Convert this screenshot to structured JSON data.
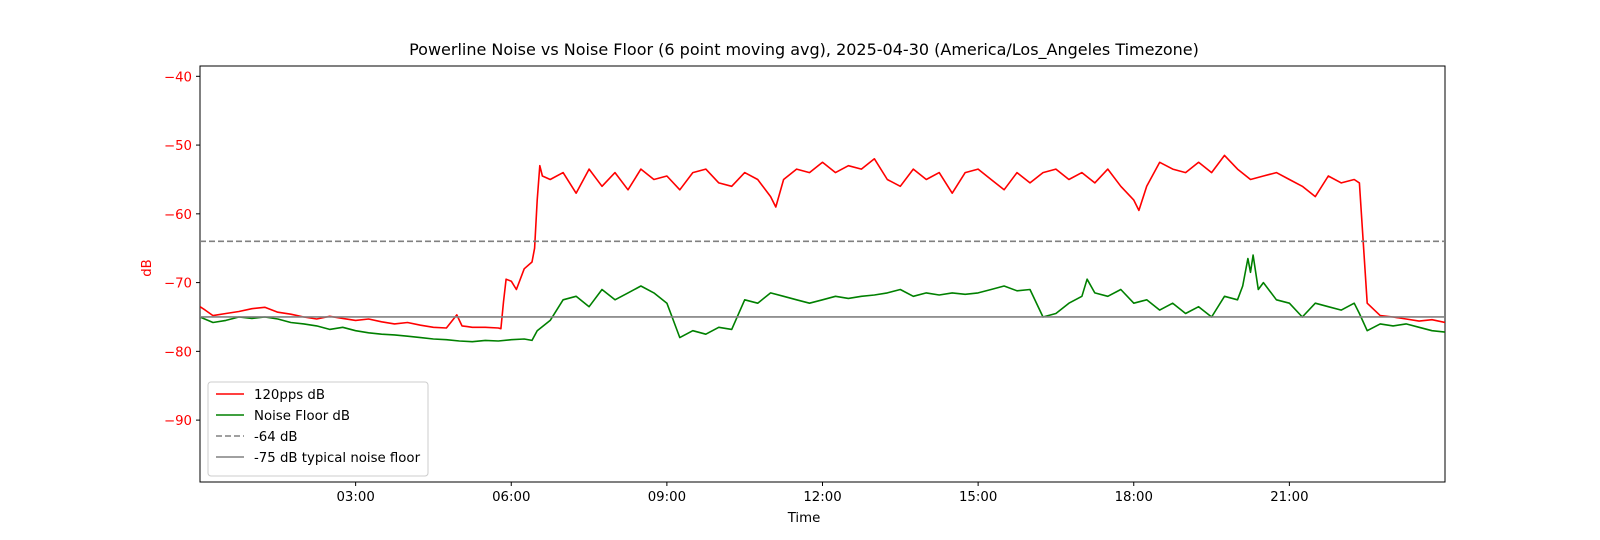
{
  "chart_data": {
    "type": "line",
    "title": "Powerline Noise vs Noise Floor (6 point moving avg), 2025-04-30 (America/Los_Angeles Timezone)",
    "xlabel": "Time",
    "ylabel": "dB",
    "x_unit": "hours",
    "xlim": [
      0,
      24
    ],
    "ylim": [
      -99,
      -38.5
    ],
    "x_ticks": [
      {
        "value": 3,
        "label": "03:00"
      },
      {
        "value": 6,
        "label": "06:00"
      },
      {
        "value": 9,
        "label": "09:00"
      },
      {
        "value": 12,
        "label": "12:00"
      },
      {
        "value": 15,
        "label": "15:00"
      },
      {
        "value": 18,
        "label": "18:00"
      },
      {
        "value": 21,
        "label": "21:00"
      }
    ],
    "y_ticks": [
      {
        "value": -40,
        "label": "−40"
      },
      {
        "value": -50,
        "label": "−50"
      },
      {
        "value": -60,
        "label": "−60"
      },
      {
        "value": -70,
        "label": "−70"
      },
      {
        "value": -80,
        "label": "−80"
      },
      {
        "value": -90,
        "label": "−90"
      }
    ],
    "ylabel_color": "#ff0000",
    "yticks_color": "#ff0000",
    "grid": false,
    "legend_position": "lower-left",
    "series": [
      {
        "name": "120pps dB",
        "color": "#ff0000",
        "style": "solid",
        "x": [
          0.0,
          0.1,
          0.25,
          0.5,
          0.75,
          1.0,
          1.25,
          1.5,
          1.75,
          2.0,
          2.25,
          2.5,
          2.75,
          3.0,
          3.25,
          3.5,
          3.75,
          4.0,
          4.25,
          4.5,
          4.75,
          4.95,
          5.05,
          5.15,
          5.25,
          5.5,
          5.75,
          5.8,
          5.85,
          5.9,
          6.0,
          6.1,
          6.25,
          6.4,
          6.45,
          6.5,
          6.55,
          6.6,
          6.75,
          7.0,
          7.25,
          7.5,
          7.75,
          8.0,
          8.25,
          8.5,
          8.75,
          9.0,
          9.25,
          9.5,
          9.75,
          10.0,
          10.25,
          10.5,
          10.75,
          11.0,
          11.1,
          11.25,
          11.5,
          11.75,
          12.0,
          12.25,
          12.5,
          12.75,
          13.0,
          13.25,
          13.5,
          13.75,
          14.0,
          14.25,
          14.5,
          14.75,
          15.0,
          15.25,
          15.5,
          15.75,
          16.0,
          16.25,
          16.5,
          16.75,
          17.0,
          17.25,
          17.5,
          17.75,
          18.0,
          18.1,
          18.25,
          18.5,
          18.75,
          19.0,
          19.25,
          19.5,
          19.75,
          20.0,
          20.25,
          20.5,
          20.75,
          21.0,
          21.25,
          21.5,
          21.75,
          22.0,
          22.25,
          22.35,
          22.5,
          22.75,
          23.0,
          23.25,
          23.5,
          23.75,
          24.0
        ],
        "y": [
          -73.5,
          -74.0,
          -74.8,
          -74.5,
          -74.2,
          -73.8,
          -73.6,
          -74.3,
          -74.6,
          -75.0,
          -75.3,
          -74.9,
          -75.2,
          -75.5,
          -75.3,
          -75.7,
          -76.0,
          -75.8,
          -76.2,
          -76.5,
          -76.6,
          -74.7,
          -76.3,
          -76.4,
          -76.5,
          -76.5,
          -76.6,
          -76.7,
          -72.8,
          -69.5,
          -69.8,
          -71.0,
          -68.0,
          -67.0,
          -65.0,
          -58.0,
          -53.0,
          -54.5,
          -55.0,
          -54.0,
          -57.0,
          -53.5,
          -56.0,
          -54.0,
          -56.5,
          -53.5,
          -55.0,
          -54.5,
          -56.5,
          -54.0,
          -53.5,
          -55.5,
          -56.0,
          -54.0,
          -55.0,
          -57.5,
          -59.0,
          -55.0,
          -53.5,
          -54.0,
          -52.5,
          -54.0,
          -53.0,
          -53.5,
          -52.0,
          -55.0,
          -56.0,
          -53.5,
          -55.0,
          -54.0,
          -57.0,
          -54.0,
          -53.5,
          -55.0,
          -56.5,
          -54.0,
          -55.5,
          -54.0,
          -53.5,
          -55.0,
          -54.0,
          -55.5,
          -53.5,
          -56.0,
          -58.0,
          -59.5,
          -56.0,
          -52.5,
          -53.5,
          -54.0,
          -52.5,
          -54.0,
          -51.5,
          -53.5,
          -55.0,
          -54.5,
          -54.0,
          -55.0,
          -56.0,
          -57.5,
          -54.5,
          -55.5,
          -55.0,
          -55.5,
          -73.0,
          -74.8,
          -75.0,
          -75.3,
          -75.6,
          -75.4,
          -75.8
        ]
      },
      {
        "name": "Noise Floor dB",
        "color": "#008000",
        "style": "solid",
        "x": [
          0.0,
          0.25,
          0.5,
          0.75,
          1.0,
          1.25,
          1.5,
          1.75,
          2.0,
          2.25,
          2.5,
          2.75,
          3.0,
          3.25,
          3.5,
          3.75,
          4.0,
          4.25,
          4.5,
          4.75,
          5.0,
          5.25,
          5.5,
          5.75,
          6.0,
          6.25,
          6.4,
          6.5,
          6.75,
          7.0,
          7.25,
          7.5,
          7.75,
          8.0,
          8.25,
          8.5,
          8.75,
          9.0,
          9.1,
          9.25,
          9.5,
          9.75,
          10.0,
          10.25,
          10.5,
          10.75,
          11.0,
          11.25,
          11.5,
          11.75,
          12.0,
          12.25,
          12.5,
          12.75,
          13.0,
          13.25,
          13.5,
          13.75,
          14.0,
          14.25,
          14.5,
          14.75,
          15.0,
          15.25,
          15.5,
          15.75,
          16.0,
          16.25,
          16.5,
          16.75,
          17.0,
          17.1,
          17.25,
          17.5,
          17.75,
          18.0,
          18.25,
          18.5,
          18.75,
          19.0,
          19.25,
          19.5,
          19.75,
          20.0,
          20.1,
          20.2,
          20.25,
          20.3,
          20.4,
          20.5,
          20.75,
          21.0,
          21.25,
          21.5,
          21.75,
          22.0,
          22.25,
          22.35,
          22.5,
          22.75,
          23.0,
          23.25,
          23.5,
          23.75,
          24.0
        ],
        "y": [
          -75.0,
          -75.8,
          -75.5,
          -75.0,
          -75.2,
          -75.0,
          -75.3,
          -75.8,
          -76.0,
          -76.3,
          -76.8,
          -76.5,
          -77.0,
          -77.3,
          -77.5,
          -77.6,
          -77.8,
          -78.0,
          -78.2,
          -78.3,
          -78.5,
          -78.6,
          -78.4,
          -78.5,
          -78.3,
          -78.2,
          -78.4,
          -77.0,
          -75.5,
          -72.5,
          -72.0,
          -73.5,
          -71.0,
          -72.5,
          -71.5,
          -70.5,
          -71.5,
          -73.0,
          -75.0,
          -78.0,
          -77.0,
          -77.5,
          -76.5,
          -76.8,
          -72.5,
          -73.0,
          -71.5,
          -72.0,
          -72.5,
          -73.0,
          -72.5,
          -72.0,
          -72.3,
          -72.0,
          -71.8,
          -71.5,
          -71.0,
          -72.0,
          -71.5,
          -71.8,
          -71.5,
          -71.7,
          -71.5,
          -71.0,
          -70.5,
          -71.2,
          -71.0,
          -75.0,
          -74.5,
          -73.0,
          -72.0,
          -69.5,
          -71.5,
          -72.0,
          -71.0,
          -73.0,
          -72.5,
          -74.0,
          -73.0,
          -74.5,
          -73.5,
          -75.0,
          -72.0,
          -72.5,
          -70.5,
          -66.5,
          -68.5,
          -66.0,
          -71.0,
          -70.0,
          -72.5,
          -73.0,
          -75.0,
          -73.0,
          -73.5,
          -74.0,
          -73.0,
          -74.5,
          -77.0,
          -76.0,
          -76.3,
          -76.0,
          -76.5,
          -77.0,
          -77.2
        ]
      },
      {
        "name": "-64 dB",
        "color": "#808080",
        "style": "dashed",
        "constant": -64
      },
      {
        "name": "-75 dB typical noise floor",
        "color": "#808080",
        "style": "solid",
        "constant": -75
      }
    ]
  }
}
